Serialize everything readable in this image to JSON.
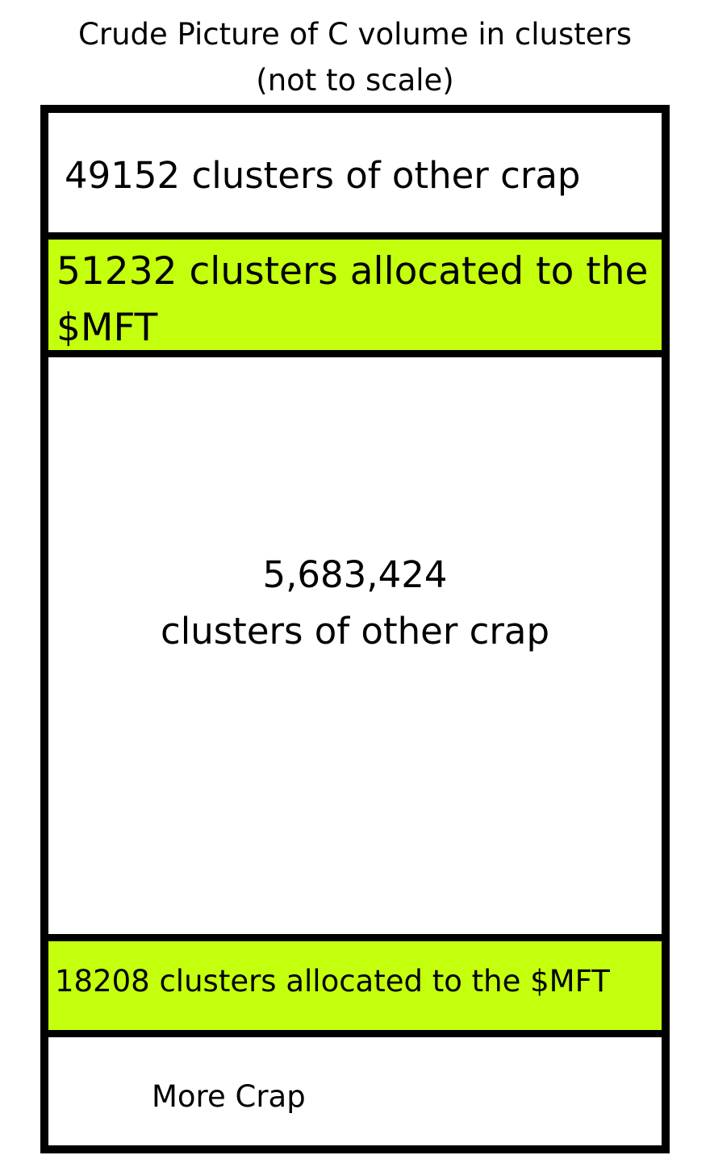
{
  "title": {
    "line1": "Crude Picture of C volume in clusters",
    "line2": "(not to scale)"
  },
  "colors": {
    "mft_fill": "#c4ff0e",
    "other_fill": "#ffffff",
    "border": "#000000"
  },
  "segments": [
    {
      "label": "49152 clusters of other crap",
      "kind": "other"
    },
    {
      "label": "51232 clusters allocated to the $MFT",
      "kind": "mft"
    },
    {
      "label_line1": "5,683,424",
      "label_line2": "clusters of other crap",
      "kind": "other"
    },
    {
      "label": "18208 clusters allocated to the $MFT",
      "kind": "mft"
    },
    {
      "label": "More Crap",
      "kind": "other"
    }
  ]
}
